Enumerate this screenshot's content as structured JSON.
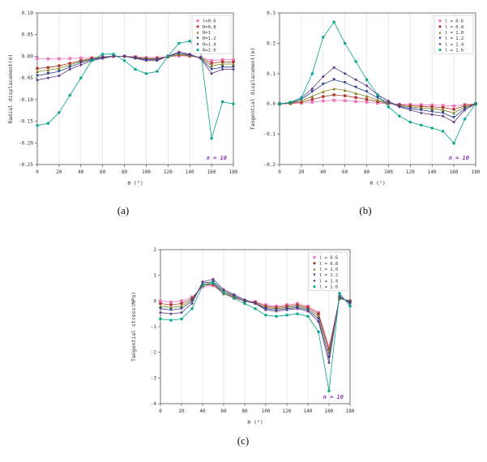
{
  "figure": {
    "sublabels": {
      "a": "(a)",
      "b": "(b)",
      "c": "(c)"
    }
  },
  "chart_data": [
    {
      "id": "a",
      "type": "line",
      "title": "",
      "xlabel": "θ (°)",
      "ylabel": "Radial displacement(m)",
      "xlim": [
        0,
        180
      ],
      "ylim": [
        -0.25,
        0.1
      ],
      "xtick_step": 20,
      "ytick_step": 0.05,
      "ytick_decimals": 2,
      "grid": "vertical",
      "legend_position": "top-right",
      "annotation": "n = 10",
      "annotation_color": "#9437b9",
      "x": [
        0,
        10,
        20,
        30,
        40,
        50,
        60,
        70,
        80,
        90,
        100,
        110,
        120,
        130,
        140,
        150,
        160,
        170,
        180
      ],
      "series": [
        {
          "name": "l=0.6",
          "color": "#ee7ac5",
          "marker": "square",
          "values": [
            -0.005,
            -0.006,
            -0.006,
            -0.005,
            -0.004,
            -0.003,
            -0.001,
            0,
            0,
            -0.001,
            -0.003,
            -0.003,
            -0.001,
            0.001,
            0,
            -0.002,
            -0.01,
            -0.008,
            -0.008
          ]
        },
        {
          "name": "R=0.8",
          "color": "#b03a2e",
          "marker": "circle",
          "values": [
            -0.028,
            -0.026,
            -0.022,
            -0.016,
            -0.01,
            -0.005,
            -0.002,
            0,
            0,
            -0.002,
            -0.005,
            -0.005,
            -0.001,
            0.003,
            0.001,
            -0.003,
            -0.016,
            -0.013,
            -0.013
          ]
        },
        {
          "name": "R=1",
          "color": "#7f7f1f",
          "marker": "triangle-up",
          "values": [
            -0.035,
            -0.032,
            -0.028,
            -0.02,
            -0.012,
            -0.006,
            -0.002,
            0,
            0,
            -0.003,
            -0.006,
            -0.006,
            -0.001,
            0.004,
            0.002,
            -0.004,
            -0.022,
            -0.018,
            -0.018
          ]
        },
        {
          "name": "R=1.2",
          "color": "#27408b",
          "marker": "triangle-down",
          "values": [
            -0.045,
            -0.04,
            -0.035,
            -0.025,
            -0.015,
            -0.008,
            -0.003,
            0,
            0,
            -0.004,
            -0.008,
            -0.008,
            0,
            0.007,
            0.003,
            -0.005,
            -0.03,
            -0.025,
            -0.025
          ]
        },
        {
          "name": "R=1.4",
          "color": "#5e3a87",
          "marker": "diamond",
          "values": [
            -0.055,
            -0.05,
            -0.045,
            -0.03,
            -0.02,
            -0.01,
            -0.005,
            0,
            0,
            -0.005,
            -0.01,
            -0.01,
            0,
            0.01,
            0.005,
            -0.005,
            -0.04,
            -0.03,
            -0.03
          ]
        },
        {
          "name": "R=1.6",
          "color": "#00a38a",
          "marker": "star",
          "values": [
            -0.16,
            -0.155,
            -0.13,
            -0.09,
            -0.05,
            -0.01,
            0.005,
            0.005,
            -0.01,
            -0.03,
            -0.04,
            -0.035,
            0,
            0.03,
            0.035,
            0.01,
            -0.19,
            -0.105,
            -0.11
          ]
        }
      ]
    },
    {
      "id": "b",
      "type": "line",
      "title": "",
      "xlabel": "θ (°)",
      "ylabel": "Tangential displacement(m)",
      "xlim": [
        0,
        180
      ],
      "ylim": [
        -0.2,
        0.3
      ],
      "xtick_step": 20,
      "ytick_step": 0.1,
      "ytick_decimals": 1,
      "grid": "vertical",
      "legend_position": "top-right",
      "annotation": "n = 10",
      "annotation_color": "#9437b9",
      "x": [
        0,
        10,
        20,
        30,
        40,
        50,
        60,
        70,
        80,
        90,
        100,
        110,
        120,
        130,
        140,
        150,
        160,
        170,
        180
      ],
      "series": [
        {
          "name": "l = 0.6",
          "color": "#ee7ac5",
          "marker": "square",
          "values": [
            0,
            0.001,
            0.003,
            0.006,
            0.01,
            0.012,
            0.011,
            0.008,
            0.006,
            0.003,
            0.001,
            -0.001,
            -0.002,
            -0.003,
            -0.004,
            -0.005,
            -0.007,
            -0.002,
            0
          ]
        },
        {
          "name": "l = 0.8",
          "color": "#b03a2e",
          "marker": "circle",
          "values": [
            0,
            0.002,
            0.006,
            0.015,
            0.024,
            0.03,
            0.027,
            0.021,
            0.015,
            0.008,
            0.002,
            -0.003,
            -0.006,
            -0.008,
            -0.01,
            -0.012,
            -0.018,
            -0.006,
            0
          ]
        },
        {
          "name": "l = 1.0",
          "color": "#7f7f1f",
          "marker": "triangle-up",
          "values": [
            0,
            0.003,
            0.01,
            0.025,
            0.04,
            0.05,
            0.045,
            0.035,
            0.025,
            0.013,
            0.003,
            -0.005,
            -0.01,
            -0.013,
            -0.016,
            -0.02,
            -0.03,
            -0.01,
            0
          ]
        },
        {
          "name": "l = 1.2",
          "color": "#27408b",
          "marker": "triangle-down",
          "values": [
            0,
            0.004,
            0.015,
            0.04,
            0.065,
            0.08,
            0.07,
            0.055,
            0.04,
            0.02,
            0.005,
            -0.008,
            -0.015,
            -0.02,
            -0.025,
            -0.03,
            -0.045,
            -0.015,
            0
          ]
        },
        {
          "name": "l = 1.4",
          "color": "#5e3a87",
          "marker": "diamond",
          "values": [
            0,
            0.005,
            0.02,
            0.05,
            0.09,
            0.12,
            0.1,
            0.08,
            0.06,
            0.03,
            0.01,
            -0.01,
            -0.02,
            -0.03,
            -0.035,
            -0.04,
            -0.06,
            -0.02,
            0
          ]
        },
        {
          "name": "l = 1.6",
          "color": "#00a38a",
          "marker": "star",
          "values": [
            0,
            0.005,
            0.02,
            0.1,
            0.22,
            0.27,
            0.2,
            0.14,
            0.08,
            0.03,
            -0.01,
            -0.04,
            -0.06,
            -0.07,
            -0.08,
            -0.09,
            -0.13,
            -0.05,
            0
          ]
        }
      ]
    },
    {
      "id": "c",
      "type": "line",
      "title": "",
      "xlabel": "θ (°)",
      "ylabel": "Tangential stress(MPa)",
      "xlim": [
        0,
        180
      ],
      "ylim": [
        -4,
        2
      ],
      "xtick_step": 20,
      "ytick_step": 1,
      "ytick_decimals": 0,
      "grid": "vertical",
      "legend_position": "top-right",
      "annotation": "n = 10",
      "annotation_color": "#9437b9",
      "x": [
        0,
        10,
        20,
        30,
        40,
        50,
        60,
        70,
        80,
        90,
        100,
        110,
        120,
        130,
        140,
        150,
        160,
        170,
        180
      ],
      "series": [
        {
          "name": "l = 0.6",
          "color": "#ee7ac5",
          "marker": "square",
          "values": [
            0,
            -0.05,
            0,
            0.15,
            0.55,
            0.6,
            0.28,
            0.12,
            0,
            -0.03,
            -0.15,
            -0.2,
            -0.15,
            -0.1,
            -0.2,
            -0.45,
            -1.8,
            0.1,
            0
          ]
        },
        {
          "name": "l = 0.8",
          "color": "#b03a2e",
          "marker": "circle",
          "values": [
            -0.1,
            -0.15,
            -0.1,
            0.1,
            0.6,
            0.65,
            0.3,
            0.15,
            0,
            -0.05,
            -0.2,
            -0.25,
            -0.2,
            -0.15,
            -0.25,
            -0.5,
            -1.9,
            0.1,
            0
          ]
        },
        {
          "name": "l = 1.0",
          "color": "#7f7f1f",
          "marker": "triangle-up",
          "values": [
            -0.2,
            -0.25,
            -0.2,
            0.05,
            0.65,
            0.7,
            0.35,
            0.18,
            0,
            -0.08,
            -0.25,
            -0.3,
            -0.25,
            -0.2,
            -0.3,
            -0.6,
            -2,
            0.1,
            0
          ]
        },
        {
          "name": "l = 1.2",
          "color": "#27408b",
          "marker": "triangle-down",
          "values": [
            -0.3,
            -0.35,
            -0.3,
            0,
            0.7,
            0.75,
            0.4,
            0.2,
            0,
            -0.1,
            -0.3,
            -0.35,
            -0.3,
            -0.25,
            -0.35,
            -0.7,
            -2.2,
            0.15,
            -0.05
          ]
        },
        {
          "name": "l = 1.4",
          "color": "#5e3a87",
          "marker": "diamond",
          "values": [
            -0.45,
            -0.5,
            -0.45,
            -0.1,
            0.75,
            0.85,
            0.45,
            0.25,
            0.05,
            -0.1,
            -0.35,
            -0.4,
            -0.35,
            -0.3,
            -0.4,
            -0.8,
            -2.4,
            0.2,
            -0.1
          ]
        },
        {
          "name": "l = 1.6",
          "color": "#00a38a",
          "marker": "star",
          "values": [
            -0.7,
            -0.75,
            -0.7,
            -0.3,
            0.6,
            0.7,
            0.3,
            0.1,
            -0.1,
            -0.3,
            -0.55,
            -0.6,
            -0.55,
            -0.5,
            -0.6,
            -1.2,
            -3.5,
            0.3,
            -0.2
          ]
        }
      ]
    }
  ]
}
